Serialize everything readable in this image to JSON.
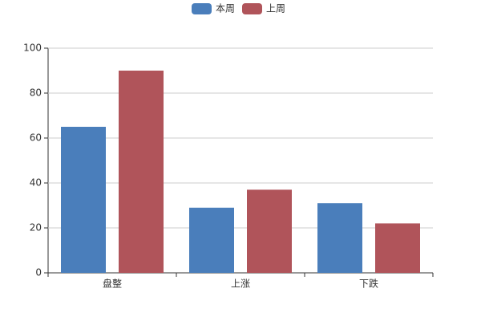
{
  "chart_data": {
    "type": "bar",
    "categories": [
      "盘整",
      "上涨",
      "下跌"
    ],
    "series": [
      {
        "name": "本周",
        "color": "#4a7ebb",
        "values": [
          65,
          29,
          31
        ]
      },
      {
        "name": "上周",
        "color": "#b0545a",
        "values": [
          90,
          37,
          22
        ]
      }
    ],
    "ylim": [
      0,
      100
    ],
    "yticks": [
      0,
      20,
      40,
      60,
      80,
      100
    ],
    "grid": true,
    "legend": "top"
  }
}
